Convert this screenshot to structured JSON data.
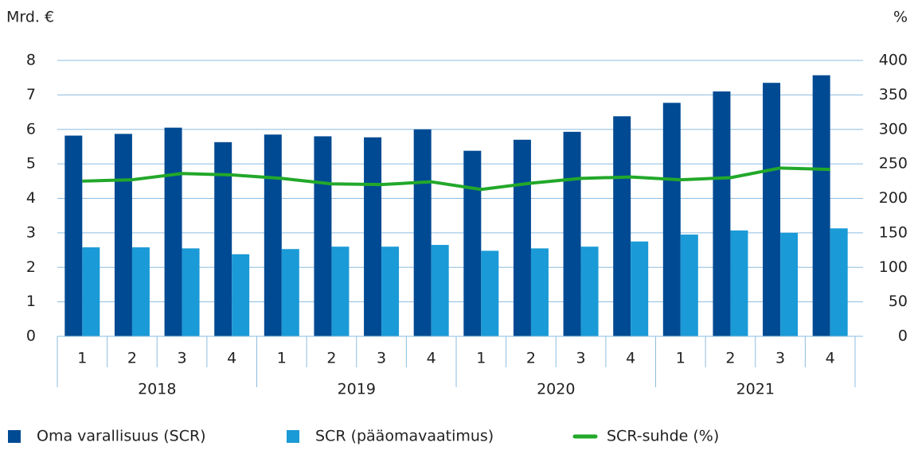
{
  "chart_data": {
    "type": "bar",
    "y_label": "Mrd. €",
    "y2_label": "%",
    "categories": [
      "1",
      "2",
      "3",
      "4",
      "1",
      "2",
      "3",
      "4",
      "1",
      "2",
      "3",
      "4",
      "1",
      "2",
      "3",
      "4"
    ],
    "groups": [
      "2018",
      "2019",
      "2020",
      "2021"
    ],
    "series": [
      {
        "name": "Oma varallisuus (SCR)",
        "color": "#004a93",
        "type": "bar",
        "values": [
          5.82,
          5.87,
          6.05,
          5.63,
          5.85,
          5.8,
          5.77,
          6.0,
          5.38,
          5.7,
          5.93,
          6.38,
          6.77,
          7.1,
          7.35,
          7.57
        ]
      },
      {
        "name": "SCR (pääomavaatimus)",
        "color": "#1a9ad6",
        "type": "bar",
        "values": [
          2.58,
          2.58,
          2.55,
          2.38,
          2.53,
          2.6,
          2.6,
          2.65,
          2.48,
          2.55,
          2.6,
          2.75,
          2.95,
          3.07,
          3.0,
          3.13
        ]
      },
      {
        "name": "SCR-suhde (%)",
        "color": "#22a82a",
        "type": "line",
        "axis": "y2",
        "values": [
          225,
          227,
          236,
          234,
          229,
          221,
          220,
          224,
          213,
          222,
          229,
          231,
          227,
          230,
          244,
          242
        ]
      }
    ],
    "ylim": [
      0,
      8
    ],
    "yticks": [
      0,
      1,
      2,
      3,
      4,
      5,
      6,
      7,
      8
    ],
    "y2lim": [
      0,
      400
    ],
    "y2ticks": [
      0,
      50,
      100,
      150,
      200,
      250,
      300,
      350,
      400
    ],
    "grid": true,
    "legend": "bottom"
  }
}
